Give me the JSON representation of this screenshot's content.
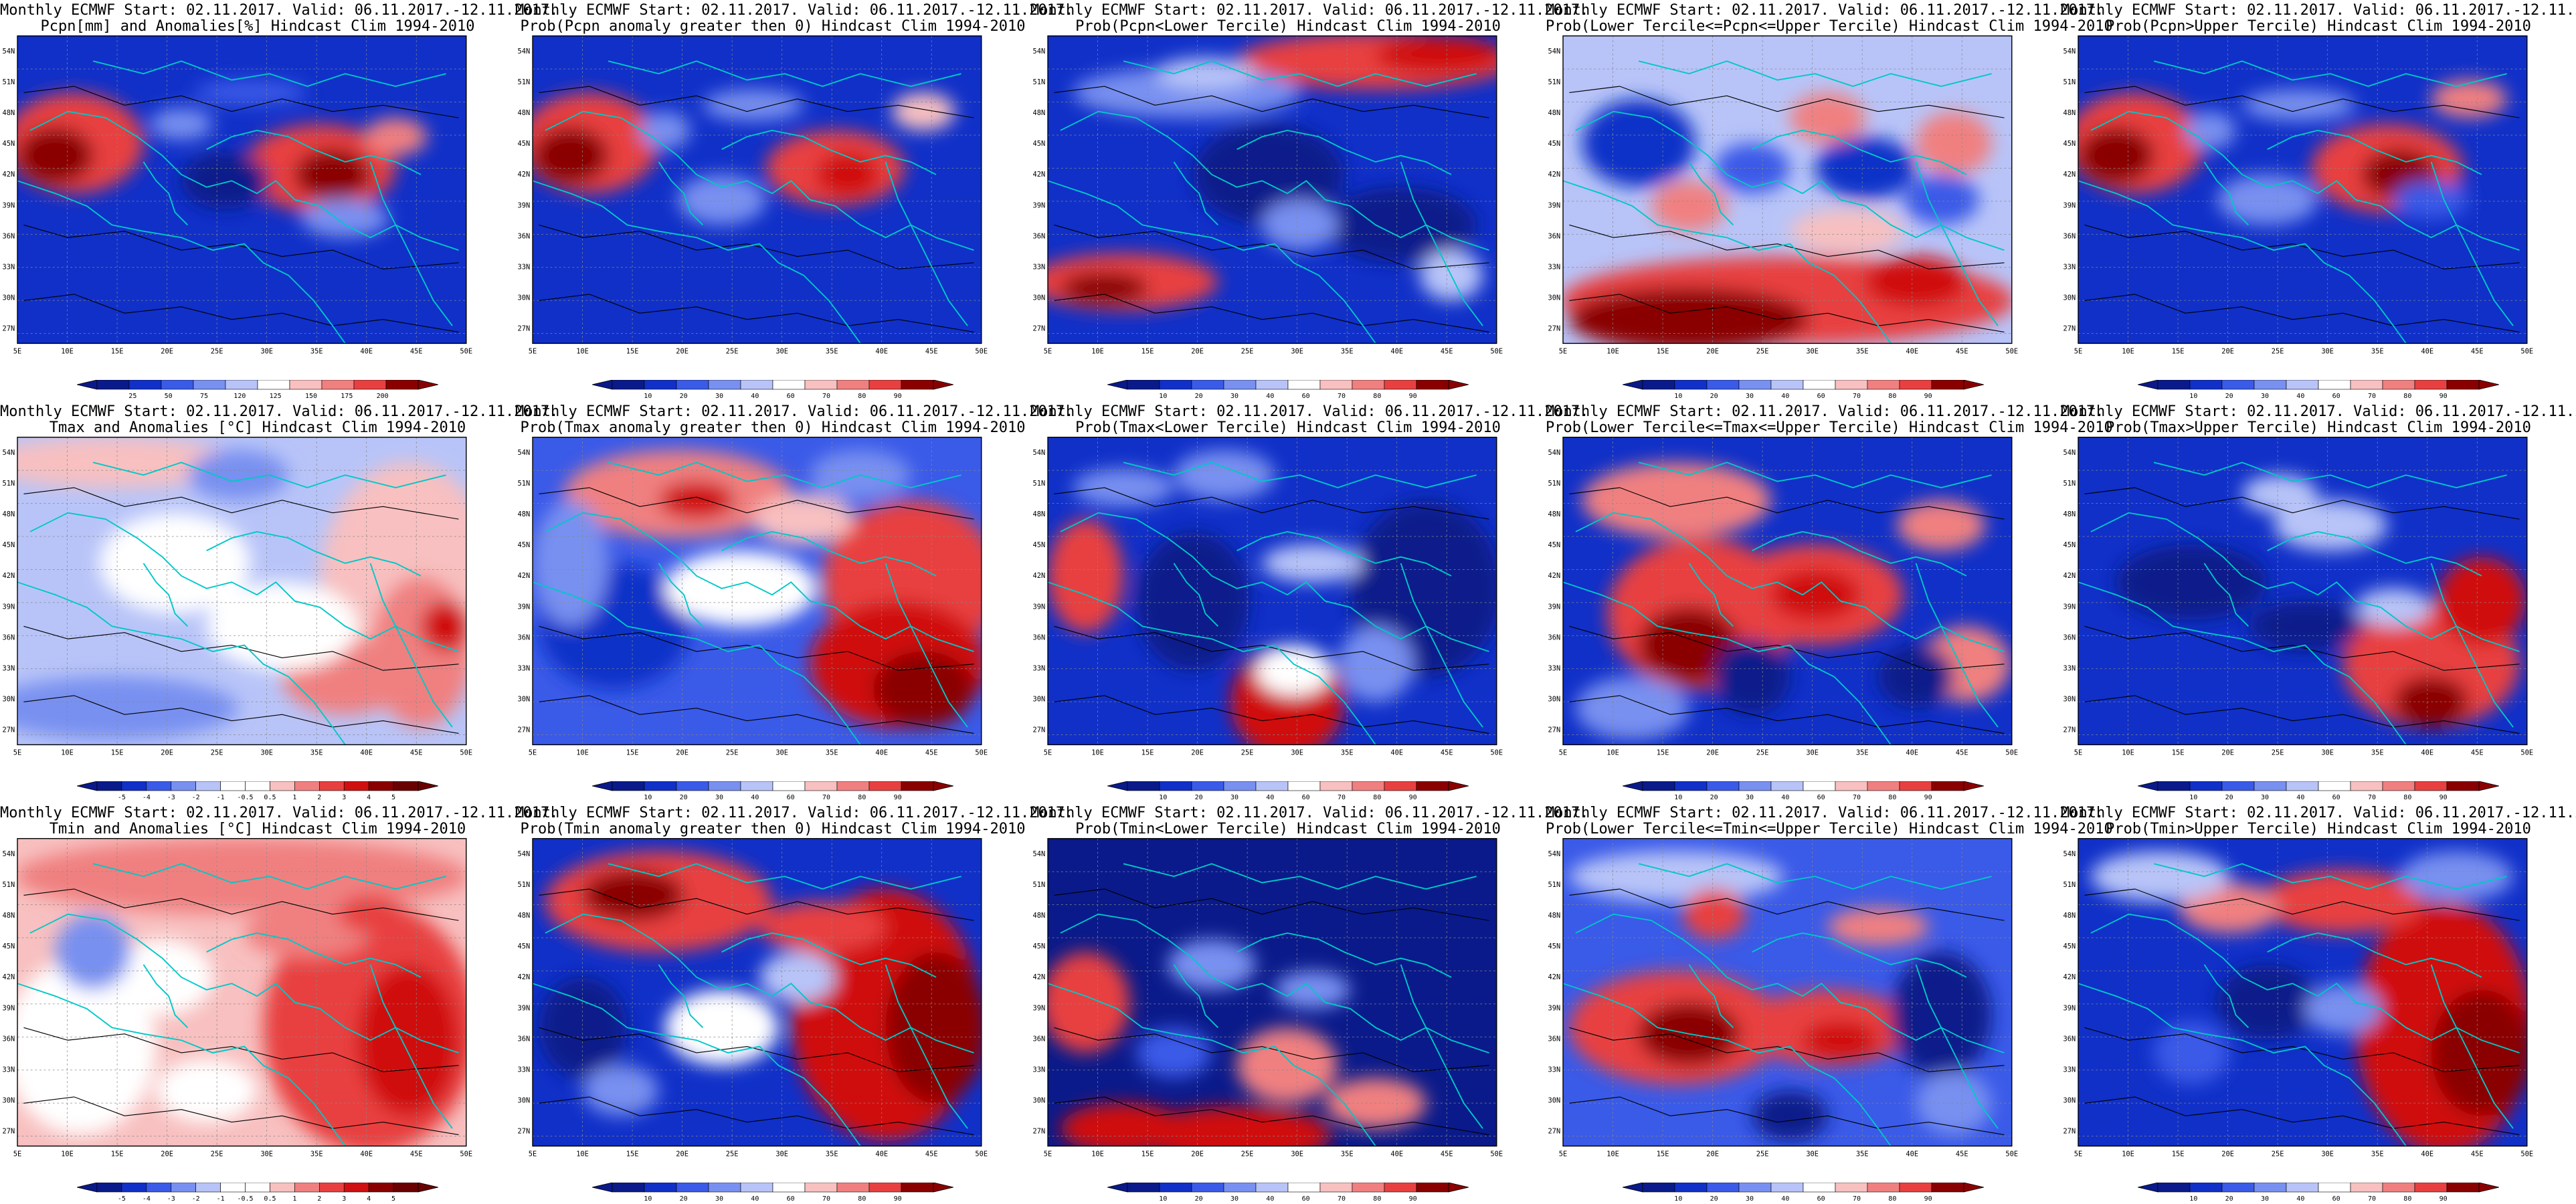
{
  "main_title_line1": "Monthly ECMWF Start: 02.11.2017. Valid: 06.11.2017.-12.11.2017.",
  "map_ticks": {
    "lon": [
      "5E",
      "10E",
      "15E",
      "20E",
      "25E",
      "30E",
      "35E",
      "40E",
      "45E",
      "50E"
    ],
    "lat": [
      "54N",
      "51N",
      "48N",
      "45N",
      "42N",
      "39N",
      "36N",
      "33N",
      "30N",
      "27N"
    ]
  },
  "colorbars": {
    "pcpn": [
      "25",
      "50",
      "75",
      "120",
      "125",
      "150",
      "175",
      "200"
    ],
    "prob": [
      "10",
      "20",
      "30",
      "40",
      "60",
      "70",
      "80",
      "90"
    ],
    "anom": [
      "-5",
      "-4",
      "-3",
      "-2",
      "-1",
      "-0.5",
      "0.5",
      "1",
      "2",
      "3",
      "4",
      "5"
    ]
  },
  "colors": {
    "sea_line": "#00c8c8",
    "contour": "#000000",
    "blue_scale": [
      "#0a1a8a",
      "#1030c8",
      "#3a5ae8",
      "#7890f0",
      "#b8c4f8"
    ],
    "red_scale": [
      "#f8c0c0",
      "#f08080",
      "#e84040",
      "#d01010",
      "#8a0000"
    ]
  },
  "panels": [
    {
      "title2": "Pcpn[mm] and Anomalies[%] Hindcast Clim 1994-2010",
      "colorbar": "pcpn",
      "pattern": "pcpn_anom"
    },
    {
      "title2": "Prob(Pcpn anomaly greater then 0) Hindcast Clim 1994-2010",
      "colorbar": "prob",
      "pattern": "pcpn_pos"
    },
    {
      "title2": "Prob(Pcpn<Lower Tercile) Hindcast Clim 1994-2010",
      "colorbar": "prob",
      "pattern": "pcpn_low"
    },
    {
      "title2": "Prob(Lower Tercile<=Pcpn<=Upper Tercile) Hindcast Clim 1994-2010",
      "colorbar": "prob",
      "pattern": "pcpn_mid"
    },
    {
      "title2": "Prob(Pcpn>Upper Tercile) Hindcast Clim 1994-2010",
      "colorbar": "prob",
      "pattern": "pcpn_up"
    },
    {
      "title2": "Tmax and Anomalies [°C] Hindcast Clim 1994-2010",
      "colorbar": "anom",
      "pattern": "tmax_anom"
    },
    {
      "title2": "Prob(Tmax anomaly greater then 0) Hindcast Clim 1994-2010",
      "colorbar": "prob",
      "pattern": "tmax_pos"
    },
    {
      "title2": "Prob(Tmax<Lower Tercile) Hindcast Clim 1994-2010",
      "colorbar": "prob",
      "pattern": "tmax_low"
    },
    {
      "title2": "Prob(Lower Tercile<=Tmax<=Upper Tercile) Hindcast Clim 1994-2010",
      "colorbar": "prob",
      "pattern": "tmax_mid"
    },
    {
      "title2": "Prob(Tmax>Upper Tercile) Hindcast Clim 1994-2010",
      "colorbar": "prob",
      "pattern": "tmax_up"
    },
    {
      "title2": "Tmin and Anomalies [°C] Hindcast Clim 1994-2010",
      "colorbar": "anom",
      "pattern": "tmin_anom"
    },
    {
      "title2": "Prob(Tmin anomaly greater then 0) Hindcast Clim 1994-2010",
      "colorbar": "prob",
      "pattern": "tmin_pos"
    },
    {
      "title2": "Prob(Tmin<Lower Tercile) Hindcast Clim 1994-2010",
      "colorbar": "prob",
      "pattern": "tmin_low"
    },
    {
      "title2": "Prob(Lower Tercile<=Tmin<=Upper Tercile) Hindcast Clim 1994-2010",
      "colorbar": "prob",
      "pattern": "tmin_mid"
    },
    {
      "title2": "Prob(Tmin>Upper Tercile) Hindcast Clim 1994-2010",
      "colorbar": "prob",
      "pattern": "tmin_up"
    }
  ]
}
